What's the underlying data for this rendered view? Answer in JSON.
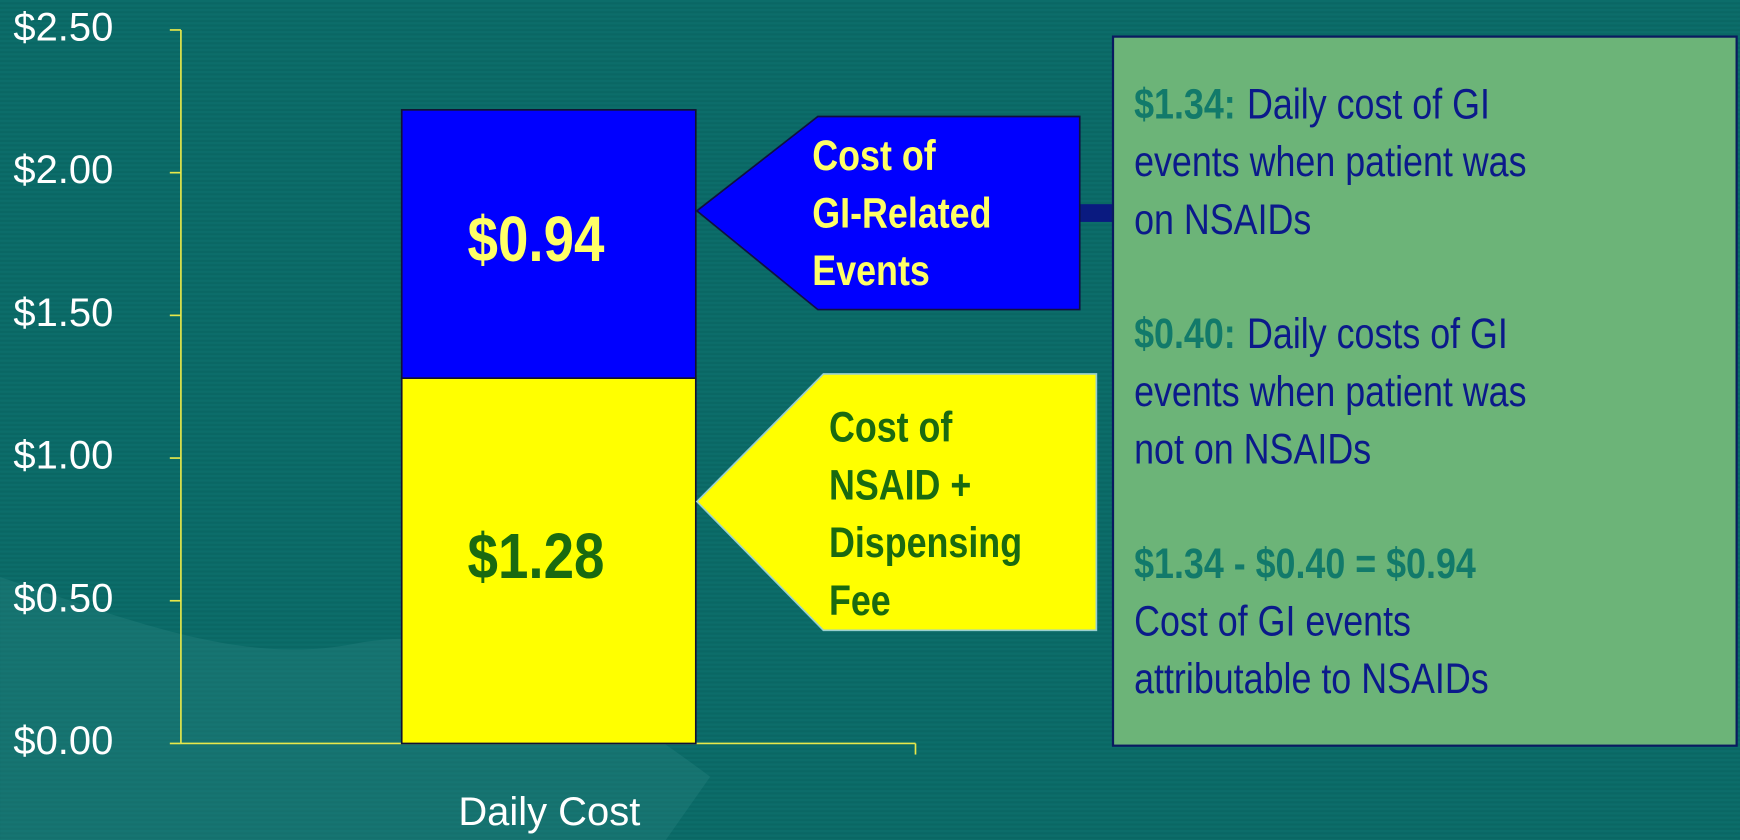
{
  "chart_data": {
    "type": "stacked_bar",
    "categories": [
      "Daily Cost"
    ],
    "series": [
      {
        "name": "Cost of NSAID + Dispensing Fee",
        "color": "#ffff00",
        "values": [
          1.28
        ],
        "value_labels": [
          "$1.28"
        ]
      },
      {
        "name": "Cost of GI-Related Events",
        "color": "#0000ff",
        "values": [
          0.94
        ],
        "value_labels": [
          "$0.94"
        ]
      }
    ],
    "ylim": [
      0,
      2.5
    ],
    "yticks": [
      {
        "value": 0,
        "label": "$0.00"
      },
      {
        "value": 0.5,
        "label": "$0.50"
      },
      {
        "value": 1,
        "label": "$1.00"
      },
      {
        "value": 1.5,
        "label": "$1.50"
      },
      {
        "value": 2,
        "label": "$2.00"
      },
      {
        "value": 2.5,
        "label": "$2.50"
      }
    ],
    "callouts": [
      {
        "lines": [
          "Cost of",
          "GI-Related",
          "Events"
        ]
      },
      {
        "lines": [
          "Cost of",
          "NSAID +",
          "Dispensing",
          "Fee"
        ]
      }
    ],
    "note_box": {
      "paragraphs": [
        {
          "lines": [
            [
              {
                "text": "$1.34:",
                "color": "#127a6a"
              },
              {
                "text": "Daily cost of GI",
                "color": "#0b1a8a"
              }
            ],
            [
              {
                "text": "events when patient was",
                "color": "#0b1a8a"
              }
            ],
            [
              {
                "text": "on NSAIDs",
                "color": "#0b1a8a"
              }
            ]
          ]
        },
        {
          "lines": [
            [
              {
                "text": "$0.40:",
                "color": "#127a6a"
              },
              {
                "text": "Daily costs of GI",
                "color": "#0b1a8a"
              }
            ],
            [
              {
                "text": "events when patient was",
                "color": "#0b1a8a"
              }
            ],
            [
              {
                "text": "not on NSAIDs",
                "color": "#0b1a8a"
              }
            ]
          ]
        },
        {
          "lines": [
            [
              {
                "text": "$1.34 - $0.40 = $0.94",
                "color": "#127a6a"
              }
            ],
            [
              {
                "text": "Cost of GI events",
                "color": "#0b1a8a"
              }
            ],
            [
              {
                "text": "attributable to NSAIDs",
                "color": "#0b1a8a"
              }
            ]
          ]
        }
      ]
    }
  }
}
